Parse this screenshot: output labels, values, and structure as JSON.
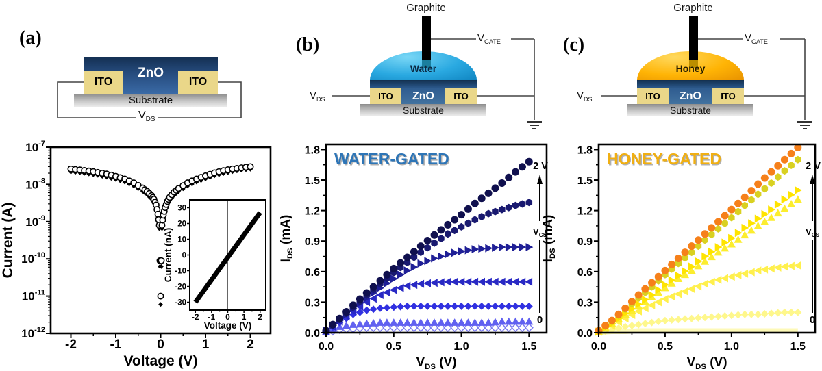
{
  "figure": {
    "panel_labels": [
      "(a)",
      "(b)",
      "(c)"
    ]
  },
  "schematics": {
    "a": {
      "zno": "ZnO",
      "ito_left": "ITO",
      "ito_right": "ITO",
      "substrate": "Substrate",
      "vds_pre": "V",
      "vds_sub": "DS"
    },
    "b": {
      "graphite": "Graphite",
      "liquid": "Water",
      "zno": "ZnO",
      "ito_left": "ITO",
      "ito_right": "ITO",
      "substrate": "Substrate",
      "vds_pre": "V",
      "vds_sub": "DS",
      "vgate_pre": "V",
      "vgate_sub": "GATE"
    },
    "c": {
      "graphite": "Graphite",
      "liquid": "Honey",
      "zno": "ZnO",
      "ito_left": "ITO",
      "ito_right": "ITO",
      "substrate": "Substrate",
      "vds_pre": "V",
      "vds_sub": "DS",
      "vgate_pre": "V",
      "vgate_sub": "GATE"
    }
  },
  "colors": {
    "water_title": "#2e75b6",
    "honey_title": "#f0af13",
    "ito": "#ead789",
    "water_drop": "#2aa9e1",
    "honey_drop": "#ffb405"
  },
  "chart_data": [
    {
      "id": "chart-a",
      "kind": "log-iv",
      "type": "scatter",
      "xlabel": "Voltage (V)",
      "ylabel": "Current (A)",
      "x_ticks": [
        -2,
        -1,
        0,
        1,
        2
      ],
      "x_tick_labels": [
        "-2",
        "-1",
        "0",
        "1",
        "2"
      ],
      "xlim": [
        -2.45,
        2.45
      ],
      "y_decades": [
        -7,
        -8,
        -9,
        -10,
        -11,
        -12
      ],
      "x": [
        -2,
        -1.8,
        -1.6,
        -1.4,
        -1.2,
        -1,
        -0.8,
        -0.6,
        -0.4,
        -0.3,
        -0.2,
        -0.15,
        -0.1,
        -0.06,
        -0.03,
        0,
        0.03,
        0.06,
        0.1,
        0.15,
        0.2,
        0.3,
        0.4,
        0.6,
        0.8,
        1,
        1.2,
        1.4,
        1.6,
        1.8,
        2
      ],
      "series": [
        {
          "name": "iv-sweep-filled-diamonds",
          "marker": "diamond",
          "color": "#000000",
          "y": [
            2.15e-08,
            2.05e-08,
            1.9e-08,
            1.75e-08,
            1.55e-08,
            1.35e-08,
            1.15e-08,
            9e-09,
            6.5e-09,
            5.3e-09,
            4e-09,
            3.2e-09,
            2.2e-09,
            1.3e-09,
            6.5e-10,
            6e-12,
            6.5e-10,
            1.2e-09,
            1.9e-09,
            2.8e-09,
            3.7e-09,
            5.1e-09,
            6.4e-09,
            9e-09,
            1.15e-08,
            1.4e-08,
            1.7e-08,
            1.95e-08,
            2.2e-08,
            2.4e-08,
            2.55e-08
          ]
        },
        {
          "name": "iv-sweep-open-circles",
          "marker": "circle-open",
          "color": "#000000",
          "y": [
            2.6e-08,
            2.45e-08,
            2.3e-08,
            2.1e-08,
            1.9e-08,
            1.65e-08,
            1.4e-08,
            1.1e-08,
            8e-09,
            6.5e-09,
            5e-09,
            4e-09,
            2.8e-09,
            1.6e-09,
            8e-10,
            1e-11,
            8e-10,
            1.5e-09,
            2.4e-09,
            3.5e-09,
            4.5e-09,
            6.2e-09,
            7.8e-09,
            1.1e-08,
            1.4e-08,
            1.7e-08,
            2.05e-08,
            2.35e-08,
            2.6e-08,
            2.8e-08,
            3e-08
          ]
        }
      ]
    },
    {
      "id": "chart-a",
      "kind": "inset",
      "type": "line",
      "xlabel": "Voltage (V)",
      "ylabel": "Current (nA)",
      "x_ticks": [
        -2,
        -1,
        0,
        1,
        2
      ],
      "x_tick_labels": [
        "-2",
        "-1",
        "0",
        "1",
        "2"
      ],
      "y_ticks": [
        30,
        20,
        10,
        0,
        -10,
        -20,
        -30
      ],
      "xlim": [
        -2.35,
        2.35
      ],
      "ylim": [
        -35,
        35
      ],
      "series": [
        {
          "name": "linear-iv-line",
          "marker": "line",
          "color": "#000000",
          "width": 7,
          "x": [
            -2,
            2
          ],
          "y": [
            -30,
            27
          ]
        }
      ]
    },
    {
      "id": "chart-b",
      "kind": "output",
      "type": "scatter",
      "title": "WATER-GATED",
      "title_color": "#2e75b6",
      "xlabel": {
        "pre": "V",
        "sub": "DS",
        "post": " (V)"
      },
      "ylabel": {
        "pre": "I",
        "sub": "DS",
        "post": " (mA)"
      },
      "x_ticks": [
        0,
        0.5,
        1,
        1.5
      ],
      "x_tick_labels": [
        "0.0",
        "0.5",
        "1.0",
        "1.5"
      ],
      "y_ticks": [
        0,
        0.3,
        0.6,
        0.9,
        1.2,
        1.5,
        1.8
      ],
      "y_tick_labels": [
        "0.0",
        "0.3",
        "0.6",
        "0.9",
        "1.2",
        "1.5",
        "1.8"
      ],
      "xlim": [
        0,
        1.63
      ],
      "ylim": [
        0,
        1.85
      ],
      "annotation": {
        "top": "2 V",
        "gate_pre": "V",
        "gate_sub": "GS",
        "bottom": "0"
      },
      "x": [
        0,
        0.1,
        0.2,
        0.3,
        0.4,
        0.5,
        0.6,
        0.7,
        0.8,
        0.9,
        1.0,
        1.1,
        1.2,
        1.3,
        1.4,
        1.5
      ],
      "series": [
        {
          "name": "vgs-2V",
          "marker": "circle",
          "color": "#10104e",
          "y": [
            0.02,
            0.14,
            0.27,
            0.39,
            0.51,
            0.63,
            0.74,
            0.85,
            0.96,
            1.06,
            1.16,
            1.27,
            1.37,
            1.47,
            1.58,
            1.68
          ]
        },
        {
          "name": "vgs-step6",
          "marker": "hexagon",
          "color": "#191970",
          "y": [
            0.02,
            0.13,
            0.25,
            0.37,
            0.48,
            0.59,
            0.69,
            0.79,
            0.88,
            0.97,
            1.04,
            1.11,
            1.17,
            1.21,
            1.25,
            1.28
          ]
        },
        {
          "name": "vgs-step5",
          "marker": "tri-right",
          "color": "#1f1f96",
          "y": [
            0.02,
            0.12,
            0.24,
            0.34,
            0.44,
            0.53,
            0.61,
            0.68,
            0.73,
            0.77,
            0.8,
            0.82,
            0.83,
            0.84,
            0.84,
            0.84
          ]
        },
        {
          "name": "vgs-step4",
          "marker": "tri-left",
          "color": "#2929c4",
          "y": [
            0.01,
            0.11,
            0.21,
            0.3,
            0.37,
            0.42,
            0.46,
            0.48,
            0.49,
            0.5,
            0.5,
            0.5,
            0.5,
            0.5,
            0.5,
            0.5
          ]
        },
        {
          "name": "vgs-step3",
          "marker": "diamond",
          "color": "#3030e0",
          "y": [
            0.01,
            0.1,
            0.18,
            0.22,
            0.24,
            0.25,
            0.26,
            0.26,
            0.26,
            0.26,
            0.26,
            0.26,
            0.26,
            0.26,
            0.26,
            0.26
          ]
        },
        {
          "name": "vgs-step2",
          "marker": "tri-up",
          "color": "#6161f0",
          "y": [
            0.01,
            0.06,
            0.08,
            0.09,
            0.1,
            0.1,
            0.1,
            0.1,
            0.1,
            0.1,
            0.1,
            0.1,
            0.1,
            0.11,
            0.11,
            0.11
          ]
        },
        {
          "name": "vgs-0",
          "marker": "diamond-open",
          "color": "#7a7af2",
          "y": [
            0.0,
            0.03,
            0.04,
            0.05,
            0.05,
            0.05,
            0.05,
            0.05,
            0.05,
            0.05,
            0.05,
            0.05,
            0.05,
            0.05,
            0.05,
            0.05
          ]
        }
      ]
    },
    {
      "id": "chart-c",
      "kind": "output",
      "type": "scatter",
      "title": "HONEY-GATED",
      "title_color": "#f0af13",
      "xlabel": {
        "pre": "V",
        "sub": "DS",
        "post": " (V)"
      },
      "ylabel": {
        "pre": "I",
        "sub": "DS",
        "post": " (mA)"
      },
      "x_ticks": [
        0,
        0.5,
        1,
        1.5
      ],
      "x_tick_labels": [
        "0.0",
        "0.5",
        "1.0",
        "1.5"
      ],
      "y_ticks": [
        0,
        0.3,
        0.6,
        0.9,
        1.2,
        1.5,
        1.8
      ],
      "y_tick_labels": [
        "0.0",
        "0.3",
        "0.6",
        "0.9",
        "1.2",
        "1.5",
        "1.8"
      ],
      "xlim": [
        0,
        1.63
      ],
      "ylim": [
        0,
        1.85
      ],
      "annotation": {
        "top": "2 V",
        "gate_pre": "V",
        "gate_sub": "GS",
        "bottom": "0"
      },
      "x": [
        0,
        0.1,
        0.2,
        0.3,
        0.4,
        0.5,
        0.6,
        0.7,
        0.8,
        0.9,
        1.0,
        1.1,
        1.2,
        1.3,
        1.4,
        1.5
      ],
      "series": [
        {
          "name": "vgs-2V",
          "marker": "circle",
          "color": "#f6801a",
          "y": [
            0.02,
            0.12,
            0.24,
            0.37,
            0.49,
            0.61,
            0.73,
            0.85,
            0.97,
            1.09,
            1.21,
            1.33,
            1.46,
            1.58,
            1.7,
            1.82
          ]
        },
        {
          "name": "vgs-step6",
          "marker": "hexagon",
          "color": "#d9d121",
          "y": [
            0.02,
            0.11,
            0.23,
            0.34,
            0.45,
            0.57,
            0.68,
            0.79,
            0.91,
            1.02,
            1.13,
            1.25,
            1.36,
            1.47,
            1.59,
            1.7
          ]
        },
        {
          "name": "vgs-step5",
          "marker": "tri-right",
          "color": "#ffe400",
          "y": [
            0.01,
            0.09,
            0.19,
            0.28,
            0.37,
            0.47,
            0.56,
            0.65,
            0.75,
            0.84,
            0.93,
            1.03,
            1.12,
            1.21,
            1.31,
            1.4
          ]
        },
        {
          "name": "vgs-step4",
          "marker": "tri-up",
          "color": "#fced2e",
          "y": [
            0.01,
            0.09,
            0.18,
            0.26,
            0.35,
            0.44,
            0.53,
            0.61,
            0.7,
            0.79,
            0.87,
            0.96,
            1.05,
            1.13,
            1.22,
            1.31
          ]
        },
        {
          "name": "vgs-step3",
          "marker": "tri-left",
          "color": "#fff04d",
          "y": [
            0.01,
            0.07,
            0.14,
            0.21,
            0.27,
            0.33,
            0.38,
            0.43,
            0.48,
            0.52,
            0.55,
            0.58,
            0.61,
            0.63,
            0.65,
            0.66
          ]
        },
        {
          "name": "vgs-step2",
          "marker": "diamond",
          "color": "#fef78c",
          "y": [
            0.0,
            0.03,
            0.06,
            0.08,
            0.1,
            0.12,
            0.13,
            0.14,
            0.15,
            0.16,
            0.17,
            0.18,
            0.18,
            0.19,
            0.2,
            0.2
          ]
        },
        {
          "name": "vgs-0",
          "marker": "band",
          "color": "#fdf9b8",
          "y": [
            0.0,
            0.01,
            0.01,
            0.02,
            0.02,
            0.02,
            0.02,
            0.02,
            0.02,
            0.02,
            0.02,
            0.02,
            0.02,
            0.02,
            0.02,
            0.02
          ]
        }
      ]
    }
  ]
}
